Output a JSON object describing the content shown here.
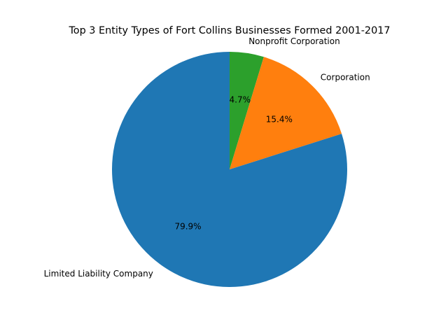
{
  "chart_data": {
    "type": "pie",
    "title": "Top 3 Entity Types of Fort Collins Businesses Formed 2001-2017",
    "categories": [
      "Nonprofit Corporation",
      "Corporation",
      "Limited Liability Company"
    ],
    "values": [
      4.7,
      15.4,
      79.9
    ],
    "labels": [
      "4.7%",
      "15.4%",
      "79.9%"
    ],
    "colors": [
      "#2ca02c",
      "#ff7f0e",
      "#1f77b4"
    ],
    "start_angle": "top",
    "direction": "clockwise",
    "legend": "none"
  }
}
